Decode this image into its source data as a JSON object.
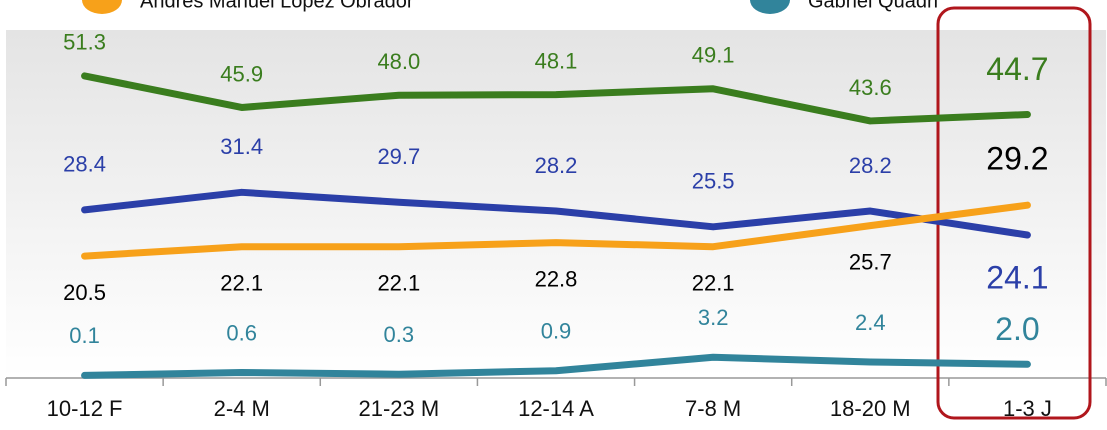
{
  "chart_data": {
    "type": "line",
    "categories": [
      "10-12 F",
      "2-4 M",
      "21-23 M",
      "12-14 A",
      "7-8 M",
      "18-20 M",
      "1-3 J"
    ],
    "ylim": [
      0,
      60
    ],
    "series": [
      {
        "color": "#3a7d1e",
        "values": [
          51.3,
          45.9,
          48.0,
          48.1,
          49.1,
          43.6,
          44.7
        ],
        "value_labels": [
          "51.3",
          "45.9",
          "48.0",
          "48.1",
          "49.1",
          "43.6",
          "44.7"
        ]
      },
      {
        "color": "#2b3fa8",
        "values": [
          28.4,
          31.4,
          29.7,
          28.2,
          25.5,
          28.2,
          24.1
        ]
      },
      {
        "name": "Andrés Manuel López Obrador",
        "color": "#f7a11a",
        "values": [
          20.5,
          22.1,
          22.1,
          22.8,
          22.1,
          25.7,
          29.2
        ]
      },
      {
        "name": "Gabriel Quadri",
        "color": "#31849b",
        "values": [
          0.1,
          0.6,
          0.3,
          0.9,
          3.2,
          2.4,
          2.0
        ],
        "value_labels": [
          "0.1",
          "0.6",
          "0.3",
          "0.9",
          "3.2",
          "2.4",
          "2.0"
        ]
      }
    ]
  }
}
